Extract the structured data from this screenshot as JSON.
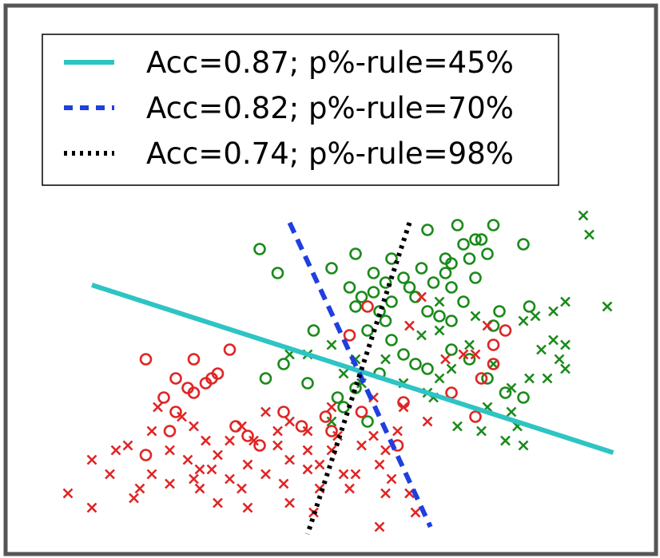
{
  "chart_data": {
    "type": "scatter",
    "title": "",
    "xlabel": "",
    "ylabel": "",
    "xlim": [
      0,
      10
    ],
    "ylim": [
      0,
      10
    ],
    "grid": false,
    "axes_visible": false,
    "legend_placement": "top-left",
    "colors": {
      "frame": "#555555",
      "green": "#1a8a1a",
      "red": "#e02525",
      "boundary_1": "#2ec4c4",
      "boundary_2": "#1f3fe0",
      "boundary_3": "#000000"
    },
    "boundaries": [
      {
        "name": "Acc=0.87; p%-rule=45%",
        "style": "solid",
        "color": "#2ec4c4",
        "points": [
          [
            1.0,
            5.55
          ],
          [
            9.7,
            2.05
          ]
        ]
      },
      {
        "name": "Acc=0.82; p%-rule=70%",
        "style": "dashed",
        "color": "#1f3fe0",
        "points": [
          [
            4.3,
            6.85
          ],
          [
            6.65,
            0.5
          ]
        ]
      },
      {
        "name": "Acc=0.74; p%-rule=98%",
        "style": "dotted",
        "color": "#000000",
        "points": [
          [
            6.3,
            6.85
          ],
          [
            4.6,
            0.35
          ]
        ]
      }
    ],
    "series": [
      {
        "color": "green",
        "marker": "o",
        "points": [
          [
            3.8,
            6.3
          ],
          [
            4.1,
            5.8
          ],
          [
            5.4,
            6.2
          ],
          [
            5.0,
            5.9
          ],
          [
            5.3,
            5.5
          ],
          [
            5.5,
            5.3
          ],
          [
            5.7,
            5.4
          ],
          [
            5.4,
            5.1
          ],
          [
            5.8,
            5.0
          ],
          [
            6.0,
            5.2
          ],
          [
            6.3,
            5.5
          ],
          [
            6.2,
            5.7
          ],
          [
            6.5,
            5.9
          ],
          [
            6.7,
            5.6
          ],
          [
            6.9,
            5.8
          ],
          [
            7.0,
            6.0
          ],
          [
            7.2,
            6.4
          ],
          [
            7.4,
            6.5
          ],
          [
            7.6,
            6.2
          ],
          [
            7.3,
            6.1
          ],
          [
            7.0,
            5.5
          ],
          [
            7.2,
            5.2
          ],
          [
            6.6,
            5.0
          ],
          [
            6.4,
            5.3
          ],
          [
            6.8,
            4.9
          ],
          [
            5.9,
            4.8
          ],
          [
            5.6,
            4.6
          ],
          [
            6.0,
            4.4
          ],
          [
            6.2,
            4.1
          ],
          [
            6.4,
            3.9
          ],
          [
            6.6,
            3.8
          ],
          [
            5.8,
            3.7
          ],
          [
            5.4,
            3.4
          ],
          [
            5.2,
            3.0
          ],
          [
            5.6,
            2.7
          ],
          [
            4.7,
            4.6
          ],
          [
            4.2,
            3.9
          ],
          [
            3.9,
            3.6
          ],
          [
            4.6,
            3.5
          ],
          [
            5.1,
            3.2
          ],
          [
            7.0,
            4.2
          ],
          [
            7.3,
            4.0
          ],
          [
            7.6,
            3.6
          ],
          [
            7.9,
            3.3
          ],
          [
            8.2,
            3.2
          ],
          [
            7.8,
            5.0
          ],
          [
            7.7,
            4.7
          ],
          [
            7.0,
            4.8
          ],
          [
            7.4,
            5.7
          ],
          [
            6.6,
            6.7
          ],
          [
            7.7,
            6.8
          ],
          [
            8.2,
            6.4
          ],
          [
            7.1,
            6.8
          ],
          [
            8.3,
            5.1
          ],
          [
            6.0,
            6.1
          ],
          [
            6.9,
            6.1
          ],
          [
            5.7,
            5.8
          ],
          [
            7.5,
            6.5
          ],
          [
            5.9,
            5.6
          ]
        ]
      },
      {
        "color": "green",
        "marker": "x",
        "points": [
          [
            9.2,
            7.0
          ],
          [
            9.3,
            6.6
          ],
          [
            9.6,
            5.1
          ],
          [
            8.9,
            5.2
          ],
          [
            8.7,
            5.0
          ],
          [
            8.4,
            4.9
          ],
          [
            8.2,
            4.8
          ],
          [
            8.7,
            4.4
          ],
          [
            8.5,
            4.2
          ],
          [
            8.9,
            4.3
          ],
          [
            8.8,
            4.0
          ],
          [
            8.6,
            3.6
          ],
          [
            8.3,
            3.6
          ],
          [
            8.0,
            3.4
          ],
          [
            7.6,
            3.0
          ],
          [
            8.0,
            2.9
          ],
          [
            7.5,
            2.5
          ],
          [
            7.1,
            2.6
          ],
          [
            7.0,
            3.8
          ],
          [
            6.8,
            3.6
          ],
          [
            6.6,
            3.3
          ],
          [
            7.4,
            4.9
          ],
          [
            7.3,
            4.3
          ],
          [
            6.5,
            4.5
          ],
          [
            6.8,
            5.2
          ],
          [
            5.9,
            4.0
          ],
          [
            5.4,
            4.0
          ],
          [
            5.0,
            4.3
          ],
          [
            4.6,
            4.1
          ],
          [
            4.3,
            4.1
          ],
          [
            5.5,
            3.5
          ],
          [
            5.0,
            2.7
          ],
          [
            5.2,
            3.7
          ],
          [
            6.7,
            3.2
          ],
          [
            6.2,
            3.5
          ],
          [
            7.9,
            2.3
          ],
          [
            8.2,
            2.2
          ],
          [
            7.7,
            3.9
          ],
          [
            6.8,
            4.6
          ],
          [
            8.9,
            3.8
          ],
          [
            8.1,
            2.6
          ]
        ]
      },
      {
        "color": "red",
        "marker": "o",
        "points": [
          [
            1.9,
            4.0
          ],
          [
            2.4,
            3.6
          ],
          [
            2.6,
            3.4
          ],
          [
            2.9,
            3.5
          ],
          [
            3.1,
            3.7
          ],
          [
            3.3,
            4.2
          ],
          [
            2.7,
            4.0
          ],
          [
            2.2,
            3.2
          ],
          [
            2.4,
            2.9
          ],
          [
            2.3,
            2.5
          ],
          [
            1.9,
            2.0
          ],
          [
            3.4,
            2.6
          ],
          [
            3.6,
            2.4
          ],
          [
            3.8,
            2.2
          ],
          [
            4.2,
            2.9
          ],
          [
            4.5,
            2.6
          ],
          [
            4.9,
            2.8
          ],
          [
            5.0,
            2.5
          ],
          [
            5.5,
            2.9
          ],
          [
            6.2,
            3.1
          ],
          [
            5.3,
            4.5
          ],
          [
            5.6,
            5.1
          ],
          [
            7.0,
            3.3
          ],
          [
            7.5,
            3.6
          ],
          [
            7.7,
            3.9
          ],
          [
            7.7,
            4.3
          ],
          [
            7.4,
            2.8
          ],
          [
            7.9,
            4.6
          ],
          [
            6.1,
            2.2
          ],
          [
            3.0,
            3.6
          ],
          [
            2.7,
            3.3
          ]
        ]
      },
      {
        "color": "red",
        "marker": "x",
        "points": [
          [
            0.6,
            1.2
          ],
          [
            1.0,
            0.9
          ],
          [
            1.4,
            2.1
          ],
          [
            1.6,
            2.2
          ],
          [
            2.0,
            2.5
          ],
          [
            2.1,
            3.0
          ],
          [
            2.5,
            2.8
          ],
          [
            2.7,
            2.6
          ],
          [
            2.9,
            2.3
          ],
          [
            2.3,
            2.1
          ],
          [
            2.6,
            1.9
          ],
          [
            2.8,
            1.7
          ],
          [
            3.1,
            2.0
          ],
          [
            3.3,
            2.3
          ],
          [
            3.5,
            2.6
          ],
          [
            3.7,
            2.3
          ],
          [
            3.9,
            2.9
          ],
          [
            4.1,
            2.5
          ],
          [
            4.3,
            2.7
          ],
          [
            4.1,
            2.2
          ],
          [
            4.3,
            1.9
          ],
          [
            4.6,
            2.1
          ],
          [
            4.8,
            1.8
          ],
          [
            5.0,
            2.1
          ],
          [
            5.1,
            2.4
          ],
          [
            5.2,
            1.6
          ],
          [
            5.5,
            2.2
          ],
          [
            5.7,
            2.4
          ],
          [
            5.9,
            2.1
          ],
          [
            6.1,
            2.5
          ],
          [
            5.8,
            1.8
          ],
          [
            6.0,
            1.5
          ],
          [
            6.3,
            1.2
          ],
          [
            5.9,
            1.2
          ],
          [
            5.3,
            1.3
          ],
          [
            4.8,
            1.3
          ],
          [
            4.6,
            1.7
          ],
          [
            4.2,
            1.4
          ],
          [
            3.9,
            1.6
          ],
          [
            3.6,
            1.8
          ],
          [
            3.3,
            1.5
          ],
          [
            3.0,
            1.7
          ],
          [
            2.7,
            1.5
          ],
          [
            2.3,
            1.4
          ],
          [
            2.0,
            1.6
          ],
          [
            1.8,
            1.3
          ],
          [
            1.7,
            1.1
          ],
          [
            1.3,
            1.6
          ],
          [
            1.0,
            1.9
          ],
          [
            3.1,
            1.0
          ],
          [
            3.6,
            0.9
          ],
          [
            4.7,
            0.8
          ],
          [
            5.8,
            0.5
          ],
          [
            6.4,
            0.8
          ],
          [
            2.8,
            1.3
          ],
          [
            3.5,
            1.3
          ],
          [
            4.3,
            1.0
          ],
          [
            5.0,
            3.0
          ],
          [
            5.7,
            3.2
          ],
          [
            6.9,
            4.0
          ],
          [
            7.2,
            4.1
          ],
          [
            7.6,
            4.7
          ],
          [
            7.4,
            4.1
          ],
          [
            6.2,
            3.0
          ],
          [
            4.6,
            2.5
          ],
          [
            6.6,
            2.7
          ],
          [
            5.4,
            1.6
          ],
          [
            6.5,
            5.3
          ],
          [
            6.3,
            4.7
          ]
        ]
      }
    ]
  }
}
